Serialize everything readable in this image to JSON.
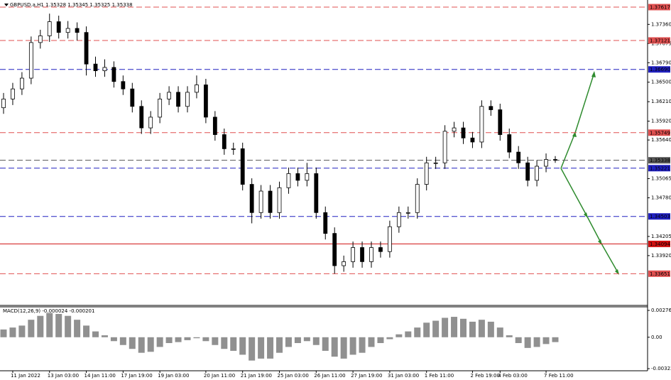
{
  "chart_data": [
    {
      "type": "candlestick",
      "title": "GBPUSD.a,H1  1.35328 1.35345 1.35325 1.35338",
      "categories": [
        null,
        "11 Jan 2022",
        null,
        null,
        null,
        "13 Jan 03:00",
        null,
        null,
        null,
        "14 Jan 11:00",
        null,
        null,
        null,
        "17 Jan 19:00",
        null,
        null,
        null,
        "19 Jan 03:00",
        null,
        null,
        null,
        null,
        "20 Jan 11:00",
        null,
        null,
        null,
        "21 Jan 19:00",
        null,
        null,
        null,
        "25 Jan 03:00",
        null,
        null,
        null,
        "26 Jan 11:00",
        null,
        null,
        null,
        "27 Jan 19:00",
        null,
        null,
        null,
        "31 Jan 03:00",
        null,
        null,
        null,
        "1 Feb 11:00",
        null,
        null,
        null,
        null,
        "2 Feb 19:00",
        null,
        null,
        "4 Feb 03:00",
        null,
        null,
        null,
        null,
        "7 Feb 11:00",
        null
      ],
      "open": [
        1.3612,
        1.3625,
        1.364,
        1.3656,
        1.3709,
        1.3719,
        1.374,
        1.3724,
        1.373,
        1.3724,
        1.3677,
        1.3667,
        1.3672,
        1.3651,
        1.364,
        1.3614,
        1.3582,
        1.3598,
        1.3625,
        1.3635,
        1.3614,
        1.3635,
        1.3646,
        1.3598,
        1.3572,
        1.3551,
        1.3551,
        1.3498,
        1.3456,
        1.3488,
        1.3456,
        1.3493,
        1.3514,
        1.3504,
        1.3514,
        1.3456,
        1.3425,
        1.3377,
        1.3383,
        1.3404,
        1.3383,
        1.3404,
        1.3398,
        1.3435,
        1.3456,
        1.3456,
        1.3498,
        1.353,
        1.353,
        1.3577,
        1.3582,
        1.3567,
        1.3561,
        1.3614,
        1.3609,
        1.3572,
        1.3546,
        1.353,
        1.3504,
        1.3525,
        1.3535
      ],
      "high": [
        1.3634,
        1.3649,
        1.3665,
        1.3718,
        1.3728,
        1.3752,
        1.3749,
        1.3741,
        1.3739,
        1.3733,
        1.3688,
        1.3684,
        1.3681,
        1.366,
        1.3649,
        1.3623,
        1.3607,
        1.3634,
        1.3644,
        1.3644,
        1.3644,
        1.366,
        1.3655,
        1.3607,
        1.3581,
        1.356,
        1.356,
        1.3507,
        1.3497,
        1.3497,
        1.3502,
        1.3523,
        1.3523,
        1.353,
        1.3523,
        1.3465,
        1.3434,
        1.3392,
        1.3413,
        1.3413,
        1.3413,
        1.3413,
        1.3444,
        1.3465,
        1.3465,
        1.3507,
        1.3539,
        1.3539,
        1.3586,
        1.3591,
        1.3591,
        1.3576,
        1.3623,
        1.3623,
        1.3618,
        1.3581,
        1.3555,
        1.3539,
        1.3534,
        1.3544,
        1.354
      ],
      "low": [
        1.3603,
        1.3616,
        1.3631,
        1.3647,
        1.37,
        1.371,
        1.3715,
        1.3715,
        1.3712,
        1.366,
        1.3658,
        1.3658,
        1.3642,
        1.3631,
        1.3605,
        1.3573,
        1.3573,
        1.3589,
        1.3616,
        1.3605,
        1.3605,
        1.3626,
        1.3589,
        1.3563,
        1.3542,
        1.3542,
        1.3489,
        1.344,
        1.3447,
        1.3447,
        1.3447,
        1.3484,
        1.3495,
        1.3495,
        1.3447,
        1.3416,
        1.3365,
        1.3368,
        1.3374,
        1.3374,
        1.3374,
        1.3389,
        1.3389,
        1.3426,
        1.3447,
        1.3447,
        1.3489,
        1.3521,
        1.3521,
        1.3568,
        1.3558,
        1.3552,
        1.3552,
        1.36,
        1.3563,
        1.3537,
        1.3521,
        1.3495,
        1.3495,
        1.3516,
        1.353
      ],
      "close": [
        1.3625,
        1.364,
        1.3656,
        1.3709,
        1.3719,
        1.374,
        1.3724,
        1.373,
        1.3724,
        1.3677,
        1.3667,
        1.3672,
        1.3651,
        1.364,
        1.3614,
        1.3582,
        1.3598,
        1.3625,
        1.3635,
        1.3614,
        1.3635,
        1.3646,
        1.3598,
        1.3572,
        1.3551,
        1.3551,
        1.3498,
        1.3456,
        1.3488,
        1.3456,
        1.3493,
        1.3514,
        1.3504,
        1.3514,
        1.3456,
        1.3425,
        1.3377,
        1.3383,
        1.3404,
        1.3383,
        1.3404,
        1.3398,
        1.3435,
        1.3456,
        1.3456,
        1.3498,
        1.353,
        1.353,
        1.3577,
        1.3582,
        1.3567,
        1.3561,
        1.3614,
        1.3609,
        1.3572,
        1.3546,
        1.353,
        1.3504,
        1.3525,
        1.3535,
        1.3534
      ],
      "up_color": "#ffffff",
      "down_color": "#000000",
      "ylim": [
        1.332,
        1.3767
      ],
      "yticks": [
        {
          "value": 1.3736,
          "label": "1.37360"
        },
        1.37075,
        {
          "value": 1.3679,
          "label": "1.36790"
        },
        {
          "value": 1.365,
          "label": "1.36500"
        },
        {
          "value": 1.3621,
          "label": "1.36210"
        },
        {
          "value": 1.3592,
          "label": "1.35920"
        },
        {
          "value": 1.3564,
          "label": "1.35640"
        },
        1.35065,
        {
          "value": 1.3478,
          "label": "1.34780"
        },
        1.34205,
        {
          "value": 1.3392,
          "label": "1.33920"
        }
      ],
      "levels": [
        {
          "value": 1.37617,
          "color": "#e05050",
          "dashed": true
        },
        {
          "value": 1.37121,
          "color": "#e05050",
          "dashed": true
        },
        {
          "value": 1.3669,
          "label": "1.36690",
          "color": "#2020c0",
          "dashed": true
        },
        {
          "value": 1.35749,
          "color": "#e05050",
          "dashed": true
        },
        {
          "value": 1.35338,
          "color": "#555555",
          "dashed": true
        },
        {
          "value": 1.35221,
          "color": "#2020c0",
          "dashed": true
        },
        {
          "value": 1.34503,
          "color": "#2020c0",
          "dashed": true
        },
        {
          "value": 1.34094,
          "color": "#d01010",
          "dashed": false
        },
        {
          "value": 1.33651,
          "color": "#e05050",
          "dashed": true
        }
      ]
    },
    {
      "type": "bar",
      "title": "MACD(12,26,9) -0.000024 -0.000201",
      "values": [
        0.0008,
        0.001,
        0.0012,
        0.0018,
        0.0022,
        0.0025,
        0.0024,
        0.0022,
        0.0018,
        0.0012,
        0.0006,
        0.0002,
        -0.0004,
        -0.0008,
        -0.0012,
        -0.0016,
        -0.0015,
        -0.001,
        -0.0006,
        -0.0005,
        -0.0003,
        -0.0001,
        -0.0004,
        -0.0008,
        -0.0012,
        -0.0014,
        -0.0018,
        -0.0024,
        -0.0022,
        -0.0022,
        -0.0016,
        -0.001,
        -0.0006,
        -0.0004,
        -0.0008,
        -0.0014,
        -0.002,
        -0.0022,
        -0.0018,
        -0.0016,
        -0.001,
        -0.0006,
        -0.0002,
        0.0003,
        0.0006,
        0.001,
        0.0015,
        0.0017,
        0.002,
        0.0021,
        0.0019,
        0.0016,
        0.0018,
        0.0016,
        0.001,
        0.0002,
        -0.0006,
        -0.0011,
        -0.001,
        -0.0007,
        -0.0005
      ],
      "color": "#909090",
      "ylim": [
        -0.003232,
        0.002764
      ],
      "yticks": [
        0.002764,
        {
          "value": 0,
          "label": "0.00"
        },
        -0.003232
      ]
    }
  ]
}
